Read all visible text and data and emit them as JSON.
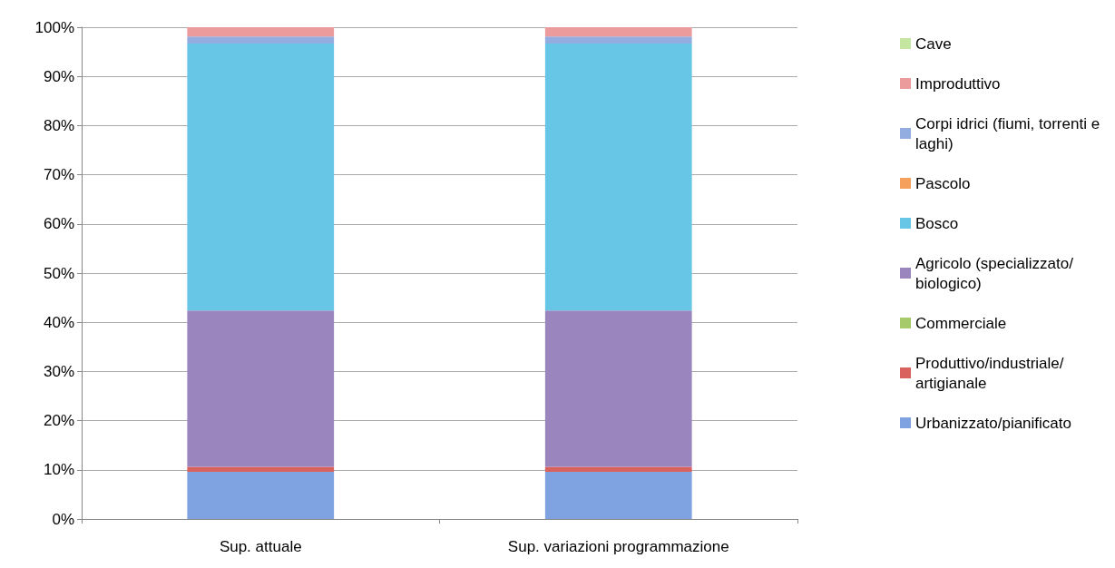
{
  "chart_data": {
    "type": "bar",
    "stacked": true,
    "categories": [
      "Sup. attuale",
      "Sup. variazioni programmazione"
    ],
    "series": [
      {
        "name": "Urbanizzato/pianificato",
        "color": "#7ea3e0",
        "values": [
          9.6,
          9.6
        ]
      },
      {
        "name": "Produttivo/industriale/artigianale",
        "color": "#d9625f",
        "values": [
          1.0,
          1.0
        ]
      },
      {
        "name": "Commerciale",
        "color": "#a6c96a",
        "values": [
          0,
          0
        ]
      },
      {
        "name": "Agricolo (specializzato/biologico)",
        "color": "#9b85be",
        "values": [
          31.8,
          31.8
        ]
      },
      {
        "name": "Bosco",
        "color": "#67c5e6",
        "values": [
          54.3,
          54.3
        ]
      },
      {
        "name": "Pascolo",
        "color": "#f5a05c",
        "values": [
          0,
          0
        ]
      },
      {
        "name": "Corpi idrici (fiumi, torrenti e laghi)",
        "color": "#93ade0",
        "values": [
          1.4,
          1.4
        ]
      },
      {
        "name": "Improduttivo",
        "color": "#eb9b9b",
        "values": [
          1.9,
          1.9
        ]
      },
      {
        "name": "Cave",
        "color": "#c4e6a0",
        "values": [
          0,
          0
        ]
      }
    ],
    "ylim": [
      0,
      100
    ],
    "yticks": [
      {
        "value": 0,
        "label": "0%"
      },
      {
        "value": 10,
        "label": "10%"
      },
      {
        "value": 20,
        "label": "20%"
      },
      {
        "value": 30,
        "label": "30%"
      },
      {
        "value": 40,
        "label": "40%"
      },
      {
        "value": 50,
        "label": "50%"
      },
      {
        "value": 60,
        "label": "60%"
      },
      {
        "value": 70,
        "label": "70%"
      },
      {
        "value": 80,
        "label": "80%"
      },
      {
        "value": 90,
        "label": "90%"
      },
      {
        "value": 100,
        "label": "100%"
      }
    ],
    "grid": "y",
    "legend": "right"
  }
}
